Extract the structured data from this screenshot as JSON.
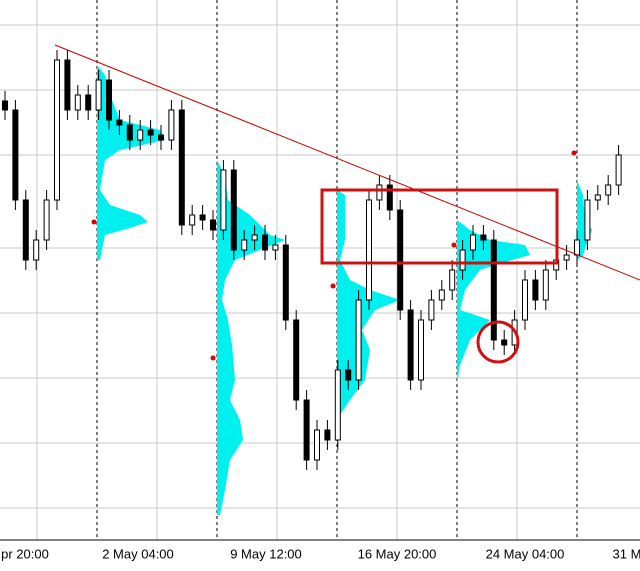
{
  "chart_data": {
    "type": "candlestick",
    "x_labels": [
      "pr 20:00",
      "2 May 04:00",
      "9 May 12:00",
      "16 May 20:00",
      "24 May 04:00",
      "31 M"
    ],
    "ylim": [
      31,
      571
    ],
    "up_color": "#ffffff",
    "down_color": "#000000",
    "series": {
      "open": [
        470,
        461,
        371,
        311,
        331,
        371,
        511,
        461,
        476,
        461,
        491,
        451,
        446,
        431,
        441,
        436,
        431,
        461,
        346,
        356,
        351,
        341,
        401,
        321,
        331,
        336,
        321,
        326,
        251,
        171,
        111,
        141,
        131,
        201,
        191,
        271,
        371,
        386,
        361,
        261,
        191,
        251,
        271,
        281,
        301,
        321,
        336,
        331,
        231,
        226,
        251,
        291,
        271,
        301,
        311,
        316,
        331,
        371,
        376,
        386
      ],
      "high": [
        480,
        471,
        381,
        341,
        381,
        521,
        521,
        486,
        486,
        501,
        501,
        461,
        456,
        451,
        451,
        446,
        471,
        471,
        366,
        366,
        361,
        411,
        411,
        341,
        346,
        346,
        336,
        336,
        261,
        181,
        151,
        151,
        211,
        211,
        281,
        381,
        396,
        396,
        371,
        271,
        261,
        281,
        291,
        311,
        331,
        346,
        346,
        341,
        241,
        261,
        301,
        301,
        311,
        321,
        326,
        341,
        381,
        386,
        396,
        426
      ],
      "low": [
        451,
        361,
        301,
        301,
        321,
        361,
        451,
        451,
        451,
        451,
        441,
        436,
        421,
        421,
        426,
        421,
        421,
        336,
        336,
        341,
        331,
        331,
        311,
        311,
        321,
        311,
        311,
        241,
        161,
        101,
        101,
        121,
        121,
        181,
        181,
        261,
        361,
        351,
        251,
        181,
        181,
        241,
        261,
        271,
        291,
        311,
        321,
        221,
        216,
        216,
        241,
        261,
        261,
        291,
        301,
        306,
        321,
        361,
        366,
        376
      ],
      "close": [
        461,
        371,
        311,
        331,
        371,
        511,
        461,
        476,
        461,
        491,
        451,
        446,
        431,
        441,
        436,
        431,
        461,
        346,
        356,
        351,
        341,
        401,
        321,
        331,
        336,
        321,
        326,
        251,
        171,
        111,
        141,
        131,
        201,
        191,
        271,
        371,
        386,
        361,
        261,
        191,
        251,
        271,
        281,
        301,
        321,
        336,
        331,
        231,
        226,
        251,
        291,
        271,
        301,
        311,
        316,
        331,
        371,
        376,
        386,
        416
      ]
    }
  }
}
